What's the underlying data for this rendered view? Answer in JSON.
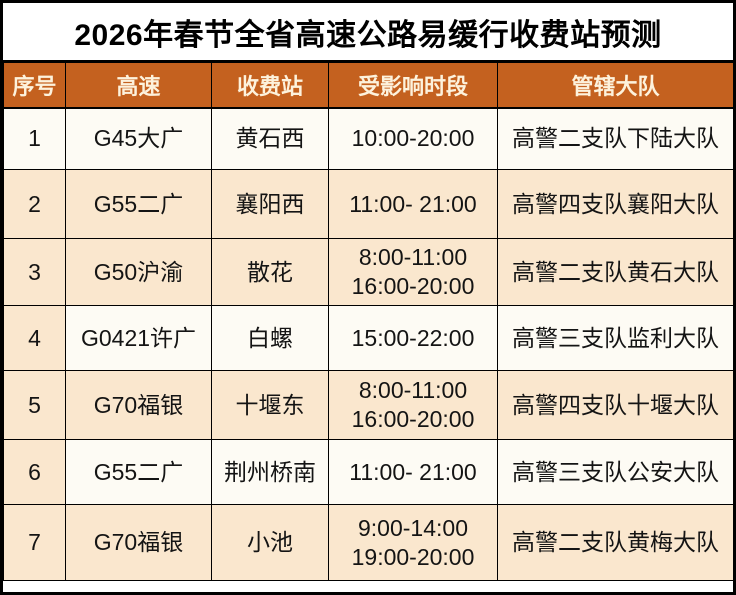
{
  "title": "2026年春节全省高速公路易缓行收费站预测",
  "columns": [
    "序号",
    "高速",
    "收费站",
    "受影响时段",
    "管辖大队"
  ],
  "rows": [
    {
      "num": "1",
      "highway": "G45大广",
      "station": "黄石西",
      "times": [
        "10:00-20:00"
      ],
      "brigade": "高警二支队下陆大队",
      "shade": "light",
      "num_shade": "light"
    },
    {
      "num": "2",
      "highway": "G55二广",
      "station": "襄阳西",
      "times": [
        "11:00- 21:00"
      ],
      "brigade": "高警四支队襄阳大队",
      "shade": "peach",
      "num_shade": "peach"
    },
    {
      "num": "3",
      "highway": "G50沪渝",
      "station": "散花",
      "times": [
        "8:00-11:00",
        "16:00-20:00"
      ],
      "brigade": "高警二支队黄石大队",
      "shade": "peach",
      "num_shade": "peach"
    },
    {
      "num": "4",
      "highway": "G0421许广",
      "station": "白螺",
      "times": [
        "15:00-22:00"
      ],
      "brigade": "高警三支队监利大队",
      "shade": "light",
      "num_shade": "peach"
    },
    {
      "num": "5",
      "highway": "G70福银",
      "station": "十堰东",
      "times": [
        "8:00-11:00",
        "16:00-20:00"
      ],
      "brigade": "高警四支队十堰大队",
      "shade": "peach",
      "num_shade": "peach"
    },
    {
      "num": "6",
      "highway": "G55二广",
      "station": "荆州桥南",
      "times": [
        "11:00- 21:00"
      ],
      "brigade": "高警三支队公安大队",
      "shade": "light",
      "num_shade": "peach"
    },
    {
      "num": "7",
      "highway": "G70福银",
      "station": "小池",
      "times": [
        "9:00-14:00",
        "19:00-20:00"
      ],
      "brigade": "高警二支队黄梅大队",
      "shade": "peach",
      "num_shade": "peach"
    }
  ],
  "colors": {
    "header_bg": "#C4611F",
    "header_text": "#FDF2DC",
    "row_light": "#FDFBF4",
    "row_peach": "#FAE7CE",
    "border": "#000000",
    "body_text": "#141414",
    "title_text": "#000000",
    "title_bg": "#FFFFFF"
  }
}
